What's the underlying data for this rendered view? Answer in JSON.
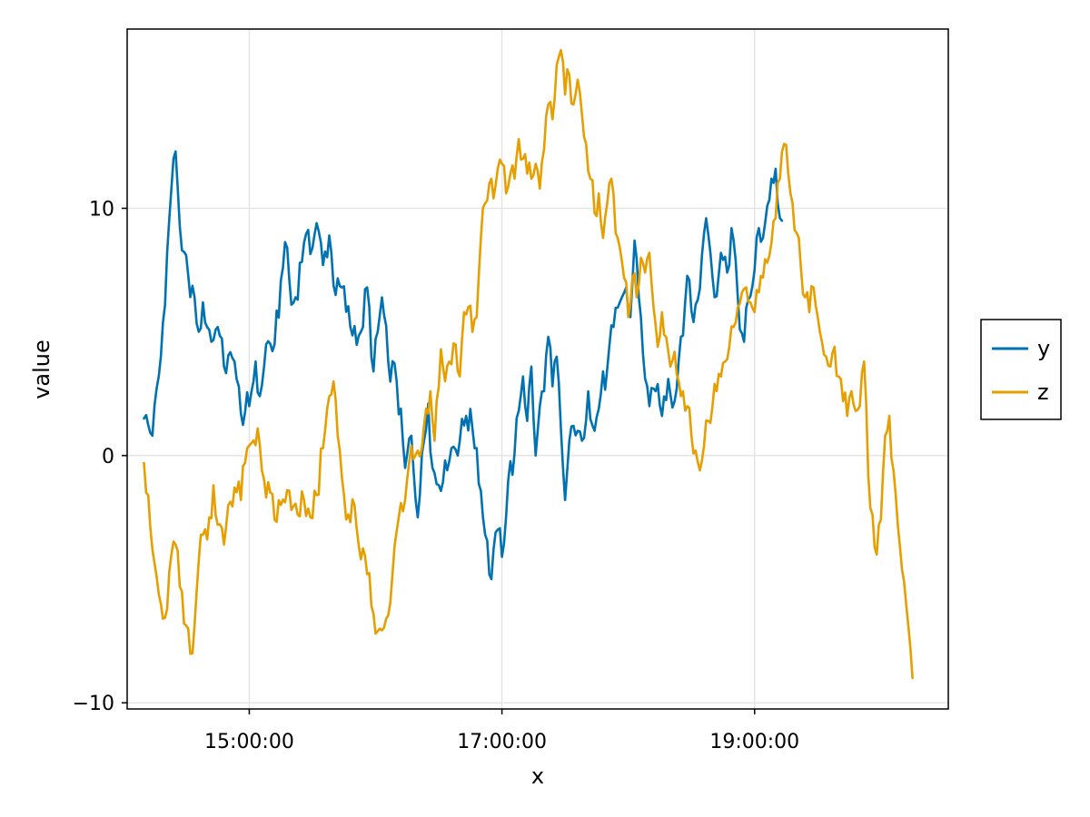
{
  "chart_data": {
    "type": "line",
    "title": "",
    "xlabel": "x",
    "ylabel": "value",
    "x_start": "14:10:00",
    "x_end": "20:15:00",
    "x_step_minutes": 1,
    "xlim": [
      "14:02:00",
      "20:32:00"
    ],
    "ylim": [
      -10.25,
      17.25
    ],
    "x_ticks": [
      {
        "label": "15:00:00",
        "value": "15:00:00"
      },
      {
        "label": "17:00:00",
        "value": "17:00:00"
      },
      {
        "label": "19:00:00",
        "value": "19:00:00"
      }
    ],
    "y_ticks": [
      {
        "label": "−10",
        "value": -10
      },
      {
        "label": "0",
        "value": 0
      },
      {
        "label": "10",
        "value": 10
      }
    ],
    "grid": true,
    "legend_position": "right",
    "series": [
      {
        "name": "y",
        "color": "#0072b2",
        "keypoints": [
          [
            "14:10:00",
            1.5
          ],
          [
            "14:14:00",
            0.8
          ],
          [
            "14:18:00",
            4.0
          ],
          [
            "14:23:00",
            10.8
          ],
          [
            "14:25:00",
            12.3
          ],
          [
            "14:28:00",
            8.3
          ],
          [
            "14:31:00",
            7.3
          ],
          [
            "14:34:00",
            6.4
          ],
          [
            "14:36:00",
            5.0
          ],
          [
            "14:38:00",
            6.2
          ],
          [
            "14:42:00",
            4.6
          ],
          [
            "14:45:00",
            5.2
          ],
          [
            "14:48:00",
            3.6
          ],
          [
            "14:53:00",
            3.8
          ],
          [
            "14:56:00",
            1.7
          ],
          [
            "15:00:00",
            2.0
          ],
          [
            "15:03:00",
            3.8
          ],
          [
            "15:05:00",
            2.4
          ],
          [
            "15:08:00",
            4.5
          ],
          [
            "15:12:00",
            4.5
          ],
          [
            "15:16:00",
            7.6
          ],
          [
            "15:18:00",
            8.4
          ],
          [
            "15:20:00",
            6.1
          ],
          [
            "15:22:00",
            6.4
          ],
          [
            "15:26:00",
            8.6
          ],
          [
            "15:30:00",
            8.4
          ],
          [
            "15:32:00",
            9.4
          ],
          [
            "15:35:00",
            7.7
          ],
          [
            "15:38:00",
            8.9
          ],
          [
            "15:41:00",
            6.5
          ],
          [
            "15:44:00",
            6.8
          ],
          [
            "15:48:00",
            5.2
          ],
          [
            "15:53:00",
            5.0
          ],
          [
            "15:56:00",
            6.8
          ],
          [
            "15:59:00",
            3.4
          ],
          [
            "16:03:00",
            6.4
          ],
          [
            "16:06:00",
            3.8
          ],
          [
            "16:10:00",
            3.0
          ],
          [
            "16:14:00",
            -0.5
          ],
          [
            "16:17:00",
            0.8
          ],
          [
            "16:20:00",
            -2.5
          ],
          [
            "16:23:00",
            0.6
          ],
          [
            "16:25:00",
            2.1
          ],
          [
            "16:27:00",
            -0.5
          ],
          [
            "16:30:00",
            -1.2
          ],
          [
            "16:33:00",
            -0.2
          ],
          [
            "16:36:00",
            0.3
          ],
          [
            "16:40:00",
            0.6
          ],
          [
            "16:43:00",
            1.6
          ],
          [
            "16:46:00",
            1.1
          ],
          [
            "16:48:00",
            0.3
          ],
          [
            "16:52:00",
            -3.2
          ],
          [
            "16:55:00",
            -5.0
          ],
          [
            "16:58:00",
            -3.0
          ],
          [
            "17:00:00",
            -4.1
          ],
          [
            "17:03:00",
            -1.0
          ],
          [
            "17:06:00",
            0.1
          ],
          [
            "17:08:00",
            1.8
          ],
          [
            "17:10:00",
            3.2
          ],
          [
            "17:12:00",
            1.4
          ],
          [
            "17:14:00",
            3.6
          ],
          [
            "17:16:00",
            0.0
          ],
          [
            "17:18:00",
            2.0
          ],
          [
            "17:20:00",
            2.6
          ],
          [
            "17:22:00",
            4.8
          ],
          [
            "17:24:00",
            2.8
          ],
          [
            "17:26:00",
            4.0
          ],
          [
            "17:28:00",
            1.1
          ],
          [
            "17:30:00",
            -1.8
          ],
          [
            "17:32:00",
            0.6
          ],
          [
            "17:34:00",
            1.2
          ],
          [
            "17:36:00",
            1.0
          ],
          [
            "17:38:00",
            0.6
          ],
          [
            "17:41:00",
            2.6
          ],
          [
            "17:44:00",
            1.0
          ],
          [
            "17:47:00",
            2.5
          ],
          [
            "17:50:00",
            3.5
          ],
          [
            "17:53:00",
            5.2
          ],
          [
            "17:56:00",
            6.2
          ],
          [
            "17:59:00",
            6.8
          ],
          [
            "18:01:00",
            5.6
          ],
          [
            "18:03:00",
            8.7
          ],
          [
            "18:05:00",
            6.4
          ],
          [
            "18:07:00",
            4.1
          ],
          [
            "18:10:00",
            2.0
          ],
          [
            "18:13:00",
            2.6
          ],
          [
            "18:16:00",
            1.6
          ],
          [
            "18:19:00",
            3.1
          ],
          [
            "18:22:00",
            2.2
          ],
          [
            "18:25:00",
            4.8
          ],
          [
            "18:27:00",
            6.2
          ],
          [
            "18:29:00",
            7.1
          ],
          [
            "18:31:00",
            5.4
          ],
          [
            "18:33:00",
            6.3
          ],
          [
            "18:35:00",
            8.1
          ],
          [
            "18:37:00",
            9.6
          ],
          [
            "18:39:00",
            8.2
          ],
          [
            "18:41:00",
            6.4
          ],
          [
            "18:44:00",
            8.2
          ],
          [
            "18:47:00",
            7.4
          ],
          [
            "18:49:00",
            9.2
          ],
          [
            "18:51:00",
            7.9
          ],
          [
            "18:53:00",
            5.1
          ],
          [
            "18:55:00",
            4.6
          ],
          [
            "18:57:00",
            6.3
          ],
          [
            "19:00:00",
            7.5
          ],
          [
            "19:02:00",
            9.2
          ],
          [
            "19:04:00",
            8.8
          ],
          [
            "19:06:00",
            10.1
          ],
          [
            "19:08:00",
            11.2
          ],
          [
            "19:10:00",
            11.6
          ],
          [
            "19:11:00",
            10.2
          ],
          [
            "19:12:00",
            9.6
          ],
          [
            "19:13:00",
            9.5
          ]
        ]
      },
      {
        "name": "z",
        "color": "#e69f00",
        "keypoints": [
          [
            "14:10:00",
            -0.3
          ],
          [
            "14:12:00",
            -1.6
          ],
          [
            "14:14:00",
            -3.8
          ],
          [
            "14:17:00",
            -5.6
          ],
          [
            "14:19:00",
            -6.6
          ],
          [
            "14:21:00",
            -6.2
          ],
          [
            "14:23:00",
            -4.0
          ],
          [
            "14:25:00",
            -3.6
          ],
          [
            "14:27:00",
            -5.3
          ],
          [
            "14:29:00",
            -6.8
          ],
          [
            "14:31:00",
            -7.0
          ],
          [
            "14:33:00",
            -8.0
          ],
          [
            "14:35:00",
            -5.5
          ],
          [
            "14:37:00",
            -3.2
          ],
          [
            "14:40:00",
            -3.4
          ],
          [
            "14:43:00",
            -1.2
          ],
          [
            "14:45:00",
            -2.8
          ],
          [
            "14:48:00",
            -3.6
          ],
          [
            "14:50:00",
            -2.0
          ],
          [
            "14:53:00",
            -1.3
          ],
          [
            "14:56:00",
            -1.8
          ],
          [
            "14:58:00",
            -0.3
          ],
          [
            "15:01:00",
            0.5
          ],
          [
            "15:04:00",
            1.1
          ],
          [
            "15:06:00",
            -0.6
          ],
          [
            "15:08:00",
            -1.7
          ],
          [
            "15:10:00",
            -1.5
          ],
          [
            "15:12:00",
            -2.6
          ],
          [
            "15:15:00",
            -2.0
          ],
          [
            "15:18:00",
            -1.4
          ],
          [
            "15:20:00",
            -2.2
          ],
          [
            "15:23:00",
            -2.4
          ],
          [
            "15:26:00",
            -1.8
          ],
          [
            "15:29:00",
            -2.5
          ],
          [
            "15:32:00",
            -1.6
          ],
          [
            "15:35:00",
            0.3
          ],
          [
            "15:38:00",
            2.4
          ],
          [
            "15:40:00",
            3.0
          ],
          [
            "15:42:00",
            0.8
          ],
          [
            "15:45:00",
            -1.6
          ],
          [
            "15:48:00",
            -2.7
          ],
          [
            "15:50:00",
            -2.0
          ],
          [
            "15:53:00",
            -4.2
          ],
          [
            "15:56:00",
            -4.8
          ],
          [
            "15:59:00",
            -6.4
          ],
          [
            "16:02:00",
            -7.0
          ],
          [
            "16:05:00",
            -6.6
          ],
          [
            "16:08:00",
            -4.8
          ],
          [
            "16:11:00",
            -2.5
          ],
          [
            "16:14:00",
            -1.8
          ],
          [
            "16:17:00",
            0.4
          ],
          [
            "16:20:00",
            0.2
          ],
          [
            "16:23:00",
            1.2
          ],
          [
            "16:26:00",
            2.6
          ],
          [
            "16:28:00",
            0.6
          ],
          [
            "16:31:00",
            4.3
          ],
          [
            "16:33:00",
            3.0
          ],
          [
            "16:35:00",
            3.8
          ],
          [
            "16:38:00",
            4.5
          ],
          [
            "16:40:00",
            3.2
          ],
          [
            "16:42:00",
            5.8
          ],
          [
            "16:44:00",
            6.0
          ],
          [
            "16:46:00",
            5.0
          ],
          [
            "16:48:00",
            5.6
          ],
          [
            "16:50:00",
            8.8
          ],
          [
            "16:52:00",
            10.2
          ],
          [
            "16:54:00",
            11.0
          ],
          [
            "16:56:00",
            10.4
          ],
          [
            "16:58:00",
            11.6
          ],
          [
            "17:00:00",
            11.8
          ],
          [
            "17:02:00",
            10.6
          ],
          [
            "17:04:00",
            11.4
          ],
          [
            "17:06:00",
            11.2
          ],
          [
            "17:08:00",
            12.8
          ],
          [
            "17:10:00",
            12.0
          ],
          [
            "17:12:00",
            11.4
          ],
          [
            "17:14:00",
            11.2
          ],
          [
            "17:16:00",
            11.8
          ],
          [
            "17:18:00",
            10.8
          ],
          [
            "17:20:00",
            12.4
          ],
          [
            "17:22:00",
            14.2
          ],
          [
            "17:24:00",
            13.6
          ],
          [
            "17:26:00",
            15.8
          ],
          [
            "17:28:00",
            16.4
          ],
          [
            "17:30:00",
            14.6
          ],
          [
            "17:32:00",
            15.4
          ],
          [
            "17:34:00",
            14.2
          ],
          [
            "17:36:00",
            15.2
          ],
          [
            "17:38:00",
            13.8
          ],
          [
            "17:40:00",
            12.6
          ],
          [
            "17:42:00",
            11.2
          ],
          [
            "17:44:00",
            9.8
          ],
          [
            "17:46:00",
            10.6
          ],
          [
            "17:48:00",
            8.8
          ],
          [
            "17:50:00",
            10.2
          ],
          [
            "17:52:00",
            11.2
          ],
          [
            "17:54:00",
            9.0
          ],
          [
            "17:56:00",
            8.4
          ],
          [
            "17:58:00",
            7.2
          ],
          [
            "18:00:00",
            5.6
          ],
          [
            "18:02:00",
            7.2
          ],
          [
            "18:04:00",
            6.4
          ],
          [
            "18:06:00",
            8.0
          ],
          [
            "18:08:00",
            7.4
          ],
          [
            "18:10:00",
            8.2
          ],
          [
            "18:12:00",
            6.0
          ],
          [
            "18:14:00",
            4.4
          ],
          [
            "18:16:00",
            5.8
          ],
          [
            "18:18:00",
            4.8
          ],
          [
            "18:20:00",
            3.6
          ],
          [
            "18:22:00",
            4.2
          ],
          [
            "18:24:00",
            3.0
          ],
          [
            "18:26:00",
            2.6
          ],
          [
            "18:28:00",
            2.0
          ],
          [
            "18:30:00",
            0.8
          ],
          [
            "18:32:00",
            0.2
          ],
          [
            "18:34:00",
            -0.6
          ],
          [
            "18:36:00",
            0.4
          ],
          [
            "18:38:00",
            1.4
          ],
          [
            "18:40:00",
            2.0
          ],
          [
            "18:42:00",
            2.6
          ],
          [
            "18:44:00",
            3.2
          ],
          [
            "18:46:00",
            3.8
          ],
          [
            "18:48:00",
            4.4
          ],
          [
            "18:50:00",
            5.2
          ],
          [
            "18:52:00",
            6.0
          ],
          [
            "18:54:00",
            6.6
          ],
          [
            "18:56:00",
            6.8
          ],
          [
            "18:58:00",
            6.2
          ],
          [
            "19:00:00",
            5.8
          ],
          [
            "19:02:00",
            6.6
          ],
          [
            "19:04:00",
            7.2
          ],
          [
            "19:06:00",
            7.8
          ],
          [
            "19:08:00",
            8.6
          ],
          [
            "19:10:00",
            9.6
          ],
          [
            "19:12:00",
            11.2
          ],
          [
            "19:14:00",
            12.6
          ],
          [
            "19:16:00",
            11.4
          ],
          [
            "19:18:00",
            10.2
          ],
          [
            "19:20:00",
            9.0
          ],
          [
            "19:22:00",
            7.6
          ],
          [
            "19:24:00",
            6.4
          ],
          [
            "19:26:00",
            5.8
          ],
          [
            "19:28:00",
            6.8
          ],
          [
            "19:30:00",
            5.6
          ],
          [
            "19:32:00",
            4.6
          ],
          [
            "19:34:00",
            4.0
          ],
          [
            "19:36:00",
            3.6
          ],
          [
            "19:38:00",
            4.4
          ],
          [
            "19:40:00",
            3.2
          ],
          [
            "19:42:00",
            2.2
          ],
          [
            "19:44:00",
            1.6
          ],
          [
            "19:46:00",
            2.6
          ],
          [
            "19:48:00",
            1.8
          ],
          [
            "19:50:00",
            2.0
          ],
          [
            "19:52:00",
            3.8
          ],
          [
            "19:54:00",
            -0.8
          ],
          [
            "19:56:00",
            -2.4
          ],
          [
            "19:58:00",
            -4.0
          ],
          [
            "20:00:00",
            -2.6
          ],
          [
            "20:02:00",
            0.8
          ],
          [
            "20:04:00",
            1.6
          ],
          [
            "20:06:00",
            -0.6
          ],
          [
            "20:08:00",
            -2.8
          ],
          [
            "20:10:00",
            -4.6
          ],
          [
            "20:12:00",
            -6.0
          ],
          [
            "20:14:00",
            -7.8
          ],
          [
            "20:15:00",
            -9.0
          ]
        ]
      }
    ]
  }
}
